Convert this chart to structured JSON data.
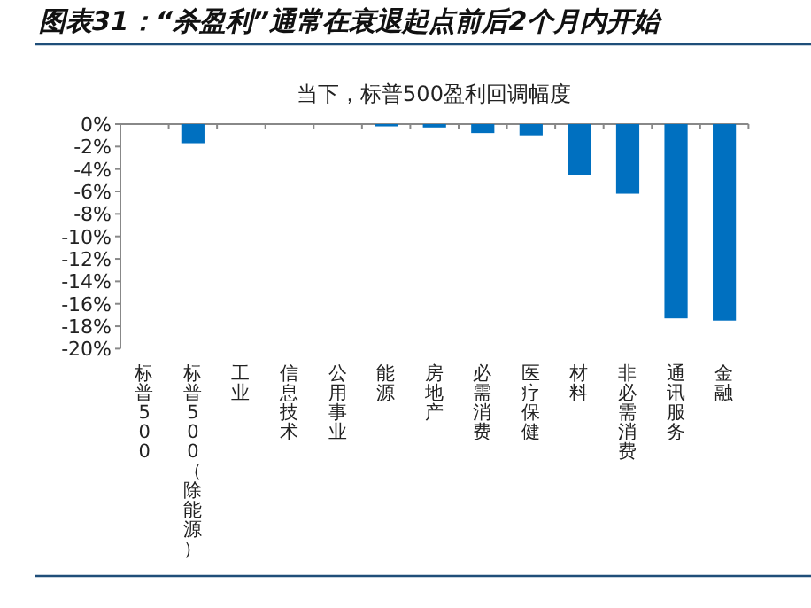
{
  "chart_data": {
    "type": "bar",
    "title": "图表31：“杀盈利”通常在衰退起点前后2个月内开始",
    "subtitle": "当下，标普500盈利回调幅度",
    "categories": [
      "标普500",
      "标普500（除能源）",
      "工业",
      "信息技术",
      "公用事业",
      "能源",
      "房地产",
      "必需消费",
      "医疗保健",
      "材料",
      "非必需消费",
      "通讯服务",
      "金融"
    ],
    "values": [
      0,
      -1.7,
      0,
      0,
      0,
      -0.2,
      -0.3,
      -0.8,
      -1.0,
      -4.5,
      -6.2,
      -17.3,
      -17.5
    ],
    "color": "#0070c0",
    "ylim": [
      -20,
      0
    ],
    "yticks": [
      {
        "value": 0,
        "label": "0%"
      },
      {
        "value": -2,
        "label": "-2%"
      },
      {
        "value": -4,
        "label": "-4%"
      },
      {
        "value": -6,
        "label": "-6%"
      },
      {
        "value": -8,
        "label": "-8%"
      },
      {
        "value": -10,
        "label": "-10%"
      },
      {
        "value": -12,
        "label": "-12%"
      },
      {
        "value": -14,
        "label": "-14%"
      },
      {
        "value": -16,
        "label": "-16%"
      },
      {
        "value": -18,
        "label": "-18%"
      },
      {
        "value": -20,
        "label": "-20%"
      }
    ]
  }
}
